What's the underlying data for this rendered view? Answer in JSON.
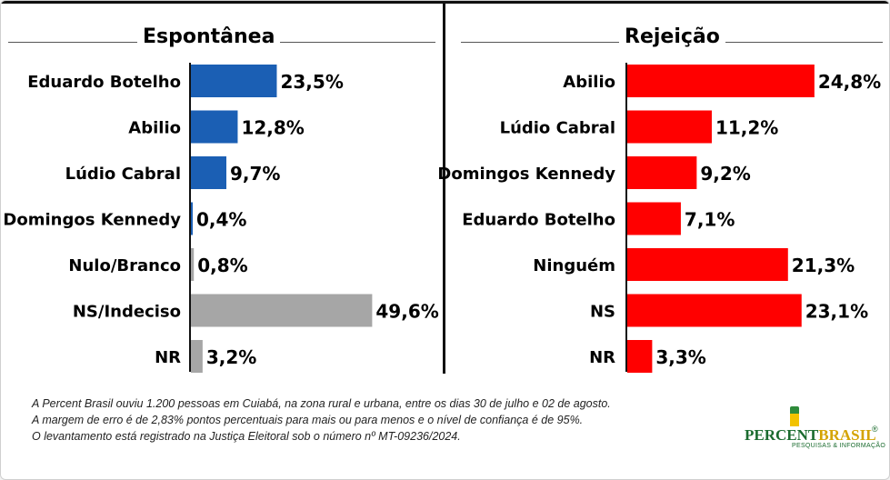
{
  "colors": {
    "espontanea_bar": "#1b5fb4",
    "espontanea_bar_muted": "#a6a6a6",
    "rejeicao_bar": "#ff0000"
  },
  "chart_data": [
    {
      "type": "bar",
      "orientation": "horizontal",
      "title": "Espontânea",
      "categories": [
        "Eduardo Botelho",
        "Abilio",
        "Lúdio Cabral",
        "Domingos Kennedy",
        "Nulo/Branco",
        "NS/Indeciso",
        "NR"
      ],
      "values": [
        23.5,
        12.8,
        9.7,
        0.4,
        0.8,
        49.6,
        3.2
      ],
      "value_labels": [
        "23,5%",
        "12,8%",
        "9,7%",
        "0,4%",
        "0,8%",
        "49,6%",
        "3,2%"
      ],
      "bar_colors": [
        "#1b5fb4",
        "#1b5fb4",
        "#1b5fb4",
        "#1b5fb4",
        "#a6a6a6",
        "#a6a6a6",
        "#a6a6a6"
      ],
      "unit": "%"
    },
    {
      "type": "bar",
      "orientation": "horizontal",
      "title": "Rejeição",
      "categories": [
        "Abilio",
        "Lúdio Cabral",
        "Domingos Kennedy",
        "Eduardo Botelho",
        "Ninguém",
        "NS",
        "NR"
      ],
      "values": [
        24.8,
        11.2,
        9.2,
        7.1,
        21.3,
        23.1,
        3.3
      ],
      "value_labels": [
        "24,8%",
        "11,2%",
        "9,2%",
        "7,1%",
        "21,3%",
        "23,1%",
        "3,3%"
      ],
      "bar_colors": [
        "#ff0000",
        "#ff0000",
        "#ff0000",
        "#ff0000",
        "#ff0000",
        "#ff0000",
        "#ff0000"
      ],
      "unit": "%"
    }
  ],
  "notes": [
    "A Percent Brasil ouviu 1.200 pessoas em Cuiabá, na zona rural e urbana, entre os dias 30 de julho e 02 de agosto.",
    "A margem de erro é de 2,83% pontos percentuais para mais ou para menos e o nível de confiança é de 95%.",
    "O levantamento está registrado na Justiça Eleitoral sob o número nº MT-09236/2024."
  ],
  "logo": {
    "name_part1": "PERCENT",
    "name_part2": "BRASIL",
    "registered": "®",
    "tagline": "PESQUISAS & INFORMAÇÃO"
  }
}
